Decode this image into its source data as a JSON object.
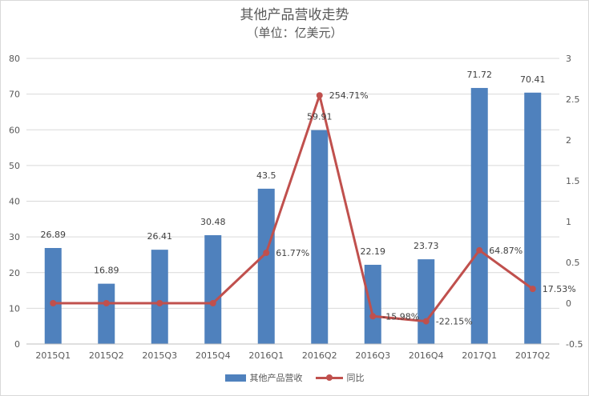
{
  "chart_data": {
    "type": "bar",
    "title": "其他产品营收走势",
    "subtitle": "（单位：亿美元）",
    "categories": [
      "2015Q1",
      "2015Q2",
      "2015Q3",
      "2015Q4",
      "2016Q1",
      "2016Q2",
      "2016Q3",
      "2016Q4",
      "2017Q1",
      "2017Q2"
    ],
    "series": [
      {
        "name": "其他产品营收",
        "type": "bar",
        "axis": "left",
        "color": "#4f81bd",
        "values": [
          26.89,
          16.89,
          26.41,
          30.48,
          43.5,
          59.91,
          22.19,
          23.73,
          71.72,
          70.41
        ],
        "labels": [
          "26.89",
          "16.89",
          "26.41",
          "30.48",
          "43.5",
          "59.91",
          "22.19",
          "23.73",
          "71.72",
          "70.41"
        ]
      },
      {
        "name": "同比",
        "type": "line",
        "axis": "right",
        "color": "#c0504d",
        "values": [
          0,
          0,
          0,
          0,
          0.6177,
          2.5471,
          -0.1598,
          -0.2215,
          0.6487,
          0.1753
        ],
        "labels": [
          "",
          "",
          "",
          "",
          "61.77%",
          "254.71%",
          "-15.98%",
          "-22.15%",
          "64.87%",
          "17.53%"
        ]
      }
    ],
    "ylim": [
      0,
      80
    ],
    "yticks": [
      "0",
      "10",
      "20",
      "30",
      "40",
      "50",
      "60",
      "70",
      "80"
    ],
    "y2lim": [
      -0.5,
      3
    ],
    "y2ticks": [
      "-0.5",
      "0",
      "0.5",
      "1",
      "1.5",
      "2",
      "2.5",
      "3"
    ],
    "grid": true,
    "legend": "bottom"
  }
}
